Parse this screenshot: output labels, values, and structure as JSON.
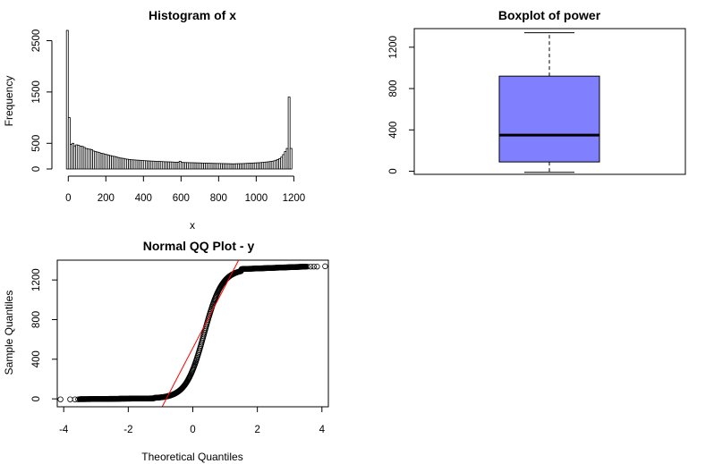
{
  "chart_data": [
    {
      "type": "bar",
      "title": "Histogram of x",
      "xlabel": "x",
      "ylabel": "Frequency",
      "xlim": [
        -30,
        1360
      ],
      "ylim": [
        0,
        2700
      ],
      "xticks": [
        "0",
        "200",
        "400",
        "600",
        "800",
        "1000",
        "1200"
      ],
      "yticks": [
        "0",
        "500",
        "1500",
        "2500"
      ],
      "bin_width": 10,
      "first_bin_start": -10,
      "values": [
        2700,
        1000,
        480,
        500,
        450,
        470,
        460,
        445,
        440,
        420,
        400,
        390,
        385,
        375,
        350,
        340,
        330,
        320,
        305,
        300,
        290,
        280,
        270,
        260,
        250,
        245,
        235,
        225,
        215,
        210,
        205,
        195,
        190,
        185,
        180,
        178,
        175,
        172,
        170,
        168,
        165,
        162,
        160,
        158,
        155,
        153,
        152,
        150,
        148,
        146,
        145,
        143,
        141,
        140,
        138,
        137,
        135,
        133,
        132,
        131,
        150,
        128,
        126,
        125,
        124,
        123,
        122,
        121,
        120,
        119,
        118,
        117,
        115,
        114,
        113,
        112,
        111,
        110,
        109,
        108,
        108,
        107,
        106,
        105,
        104,
        103,
        102,
        101,
        100,
        100,
        102,
        103,
        104,
        105,
        106,
        108,
        110,
        112,
        114,
        116,
        118,
        120,
        122,
        125,
        128,
        132,
        136,
        140,
        145,
        150,
        158,
        170,
        185,
        200,
        230,
        280,
        340,
        400,
        1400,
        400
      ]
    },
    {
      "type": "box",
      "title": "Boxplot of power",
      "ylim": [
        -30,
        1380
      ],
      "yticks": [
        "0",
        "400",
        "800",
        "1200"
      ],
      "min": -10,
      "q1": 90,
      "median": 350,
      "q3": 920,
      "max": 1340,
      "fill": "#8080ff"
    },
    {
      "type": "scatter",
      "title": "Normal QQ Plot - y",
      "xlabel": "Theoretical Quantiles",
      "ylabel": "Sample Quantiles",
      "xlim": [
        -4.2,
        4.2
      ],
      "ylim": [
        -80,
        1400
      ],
      "xticks": [
        "-4",
        "-2",
        "0",
        "2",
        "4"
      ],
      "yticks": [
        "0",
        "400",
        "800",
        "1200"
      ],
      "reference_line_color": "#ff0000",
      "low_outliers": [
        [
          -4.1,
          -5
        ],
        [
          -3.8,
          -5
        ],
        [
          -3.65,
          -5
        ],
        [
          -3.55,
          -5
        ]
      ],
      "high_outliers": [
        [
          3.55,
          1335
        ],
        [
          3.65,
          1335
        ],
        [
          3.75,
          1335
        ],
        [
          3.85,
          1335
        ],
        [
          4.1,
          1338
        ]
      ]
    }
  ]
}
